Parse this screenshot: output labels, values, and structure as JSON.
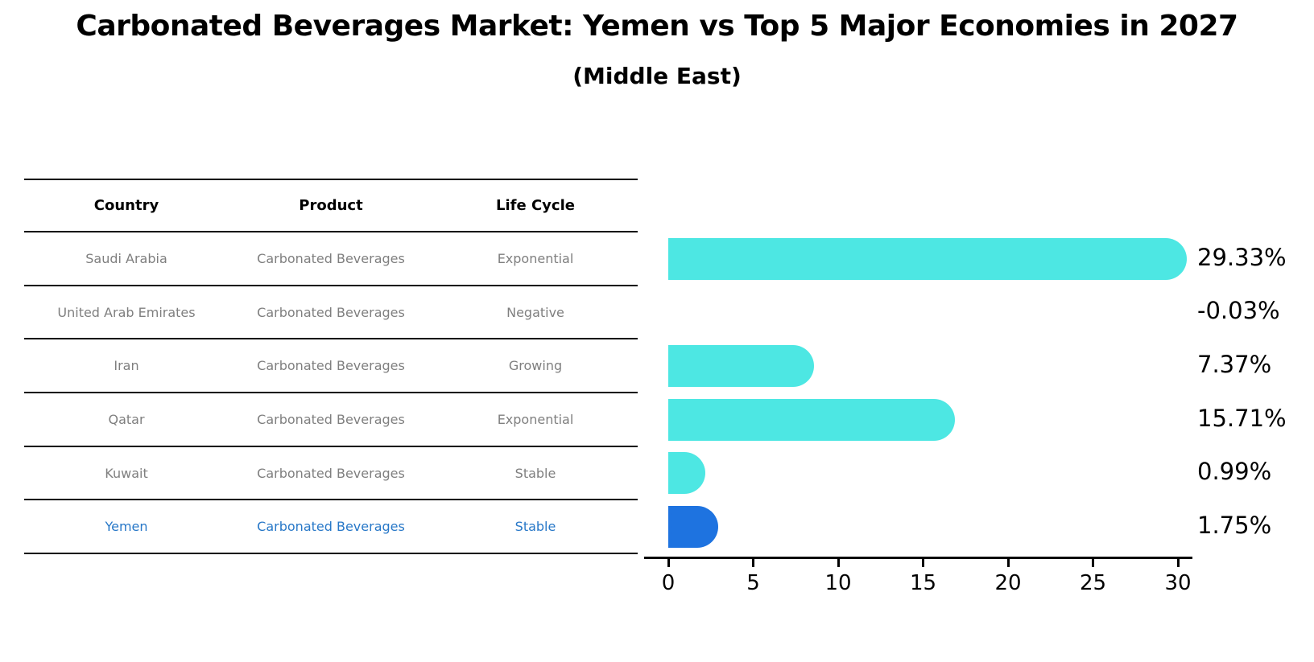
{
  "title": "Carbonated Beverages Market: Yemen vs Top 5 Major Economies in 2027",
  "subtitle": "(Middle East)",
  "table": {
    "headers": [
      "Country",
      "Product",
      "Life Cycle"
    ],
    "rows": [
      {
        "country": "Saudi Arabia",
        "product": "Carbonated Beverages",
        "life_cycle": "Exponential",
        "highlighted": false
      },
      {
        "country": "United Arab Emirates",
        "product": "Carbonated Beverages",
        "life_cycle": "Negative",
        "highlighted": false
      },
      {
        "country": "Iran",
        "product": "Carbonated Beverages",
        "life_cycle": "Growing",
        "highlighted": false
      },
      {
        "country": "Qatar",
        "product": "Carbonated Beverages",
        "life_cycle": "Exponential",
        "highlighted": false
      },
      {
        "country": "Kuwait",
        "product": "Carbonated Beverages",
        "life_cycle": "Stable",
        "highlighted": false
      },
      {
        "country": "Yemen",
        "product": "Carbonated Beverages",
        "life_cycle": "Stable",
        "highlighted": true
      }
    ]
  },
  "chart_data": {
    "type": "bar",
    "orientation": "horizontal",
    "categories": [
      "Saudi Arabia",
      "United Arab Emirates",
      "Iran",
      "Qatar",
      "Kuwait",
      "Yemen"
    ],
    "values": [
      29.33,
      -0.03,
      7.37,
      15.71,
      0.99,
      1.75
    ],
    "value_labels": [
      "29.33%",
      "-0.03%",
      "7.37%",
      "15.71%",
      "0.99%",
      "1.75%"
    ],
    "title": "Carbonated Beverages Market: Yemen vs Top 5 Major Economies in 2027 (Middle East)",
    "xlabel": "",
    "ylabel": "",
    "xlim": [
      0,
      30
    ],
    "xticks": [
      0,
      5,
      10,
      15,
      20,
      25,
      30
    ],
    "grid": false,
    "legend": false,
    "highlight_index": 5,
    "bar_color": "#4DE7E3",
    "highlight_bar_color": "#1E73E0"
  },
  "colors": {
    "background": "#FFFFFF",
    "title_text": "#000000",
    "table_header_text": "#000000",
    "table_text": "#7F7F7F",
    "highlight_row_text": "#2878C8",
    "axis": "#000000",
    "bar_cyan": "#4DE7E3",
    "bar_blue": "#1E73E0"
  }
}
